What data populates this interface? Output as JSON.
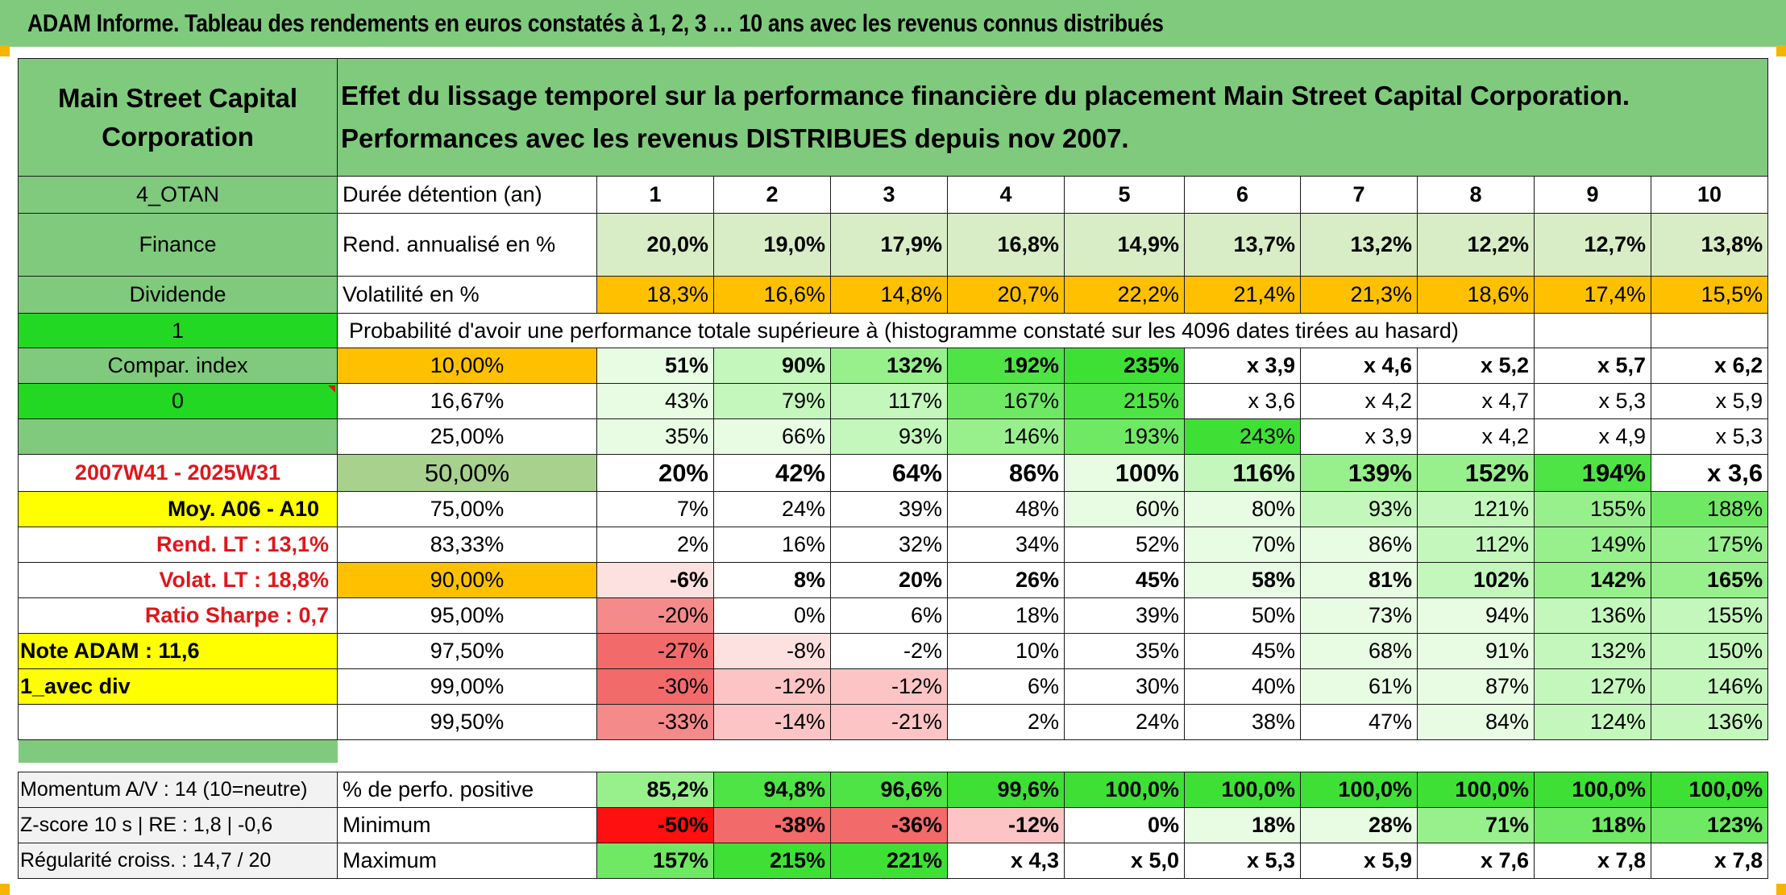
{
  "title": "ADAM Informe. Tableau des rendements en euros constatés à 1, 2, 3 … 10 ans avec les revenus connus distribués",
  "header": {
    "left": "Main Street Capital Corporation",
    "right": "Effet du lissage temporel sur la performance financière du placement Main Street Capital Corporation. Performances avec les revenus DISTRIBUES depuis nov 2007."
  },
  "side": {
    "otan": "4_OTAN",
    "sector": "Finance",
    "type": "Dividende",
    "flag1": "1",
    "compar": "Compar. index",
    "flag0": "0",
    "blank": "",
    "period": "2007W41 - 2025W31",
    "moy": "Moy. A06 - A10",
    "rend_lt": "Rend. LT :   13,1%",
    "volat_lt": "Volat. LT :   18,8%",
    "sharpe": "Ratio Sharpe :   0,7",
    "note": "Note ADAM : 11,6",
    "avec_div": "1_avec div"
  },
  "rows_label": {
    "duree": "Durée détention (an)",
    "rend": "Rend. annualisé en %",
    "vol": "Volatilité en %",
    "proba": "Probabilité d'avoir une performance totale supérieure à (histogramme constaté sur les 4096 dates tirées au hasard)"
  },
  "years": [
    "1",
    "2",
    "3",
    "4",
    "5",
    "6",
    "7",
    "8",
    "9",
    "10"
  ],
  "rend": [
    "20,0%",
    "19,0%",
    "17,9%",
    "16,8%",
    "14,9%",
    "13,7%",
    "13,2%",
    "12,2%",
    "12,7%",
    "13,8%"
  ],
  "vol": [
    "18,3%",
    "16,6%",
    "14,8%",
    "20,7%",
    "22,2%",
    "21,4%",
    "21,3%",
    "18,6%",
    "17,4%",
    "15,5%"
  ],
  "prob_rows": [
    {
      "p": "10,00%",
      "v": [
        "51%",
        "90%",
        "132%",
        "192%",
        "235%",
        "x 3,9",
        "x 4,6",
        "x 5,2",
        "x 5,7",
        "x 6,2"
      ]
    },
    {
      "p": "16,67%",
      "v": [
        "43%",
        "79%",
        "117%",
        "167%",
        "215%",
        "x 3,6",
        "x 4,2",
        "x 4,7",
        "x 5,3",
        "x 5,9"
      ]
    },
    {
      "p": "25,00%",
      "v": [
        "35%",
        "66%",
        "93%",
        "146%",
        "193%",
        "243%",
        "x 3,9",
        "x 4,2",
        "x 4,9",
        "x 5,3"
      ]
    },
    {
      "p": "50,00%",
      "v": [
        "20%",
        "42%",
        "64%",
        "86%",
        "100%",
        "116%",
        "139%",
        "152%",
        "194%",
        "x 3,6"
      ]
    },
    {
      "p": "75,00%",
      "v": [
        "7%",
        "24%",
        "39%",
        "48%",
        "60%",
        "80%",
        "93%",
        "121%",
        "155%",
        "188%"
      ]
    },
    {
      "p": "83,33%",
      "v": [
        "2%",
        "16%",
        "32%",
        "34%",
        "52%",
        "70%",
        "86%",
        "112%",
        "149%",
        "175%"
      ]
    },
    {
      "p": "90,00%",
      "v": [
        "-6%",
        "8%",
        "20%",
        "26%",
        "45%",
        "58%",
        "81%",
        "102%",
        "142%",
        "165%"
      ]
    },
    {
      "p": "95,00%",
      "v": [
        "-20%",
        "0%",
        "6%",
        "18%",
        "39%",
        "50%",
        "73%",
        "94%",
        "136%",
        "155%"
      ]
    },
    {
      "p": "97,50%",
      "v": [
        "-27%",
        "-8%",
        "-2%",
        "10%",
        "35%",
        "45%",
        "68%",
        "91%",
        "132%",
        "150%"
      ]
    },
    {
      "p": "99,00%",
      "v": [
        "-30%",
        "-12%",
        "-12%",
        "6%",
        "30%",
        "40%",
        "61%",
        "87%",
        "127%",
        "146%"
      ]
    },
    {
      "p": "99,50%",
      "v": [
        "-33%",
        "-14%",
        "-21%",
        "2%",
        "24%",
        "38%",
        "47%",
        "84%",
        "124%",
        "136%"
      ]
    }
  ],
  "bottom": {
    "momentum": "Momentum A/V : 14 (10=neutre)",
    "zscore": "Z-score 10 s | RE : 1,8 | -0,6",
    "regul": "Régularité croiss. : 14,7 / 20",
    "pos_label": "% de perfo. positive",
    "min_label": "Minimum",
    "max_label": "Maximum",
    "pos": [
      "85,2%",
      "94,8%",
      "96,6%",
      "99,6%",
      "100,0%",
      "100,0%",
      "100,0%",
      "100,0%",
      "100,0%",
      "100,0%"
    ],
    "min": [
      "-50%",
      "-38%",
      "-36%",
      "-12%",
      "0%",
      "18%",
      "28%",
      "71%",
      "118%",
      "123%"
    ],
    "max": [
      "157%",
      "215%",
      "221%",
      "x 4,3",
      "x 5,0",
      "x 5,3",
      "x 5,9",
      "x 7,6",
      "x 7,8",
      "x 7,8"
    ]
  },
  "colors": {
    "header_green": "#7fca7d",
    "bright_green": "#22d822",
    "yellow": "#ffff00",
    "orange": "#ffc000",
    "red": "#ff1010"
  }
}
